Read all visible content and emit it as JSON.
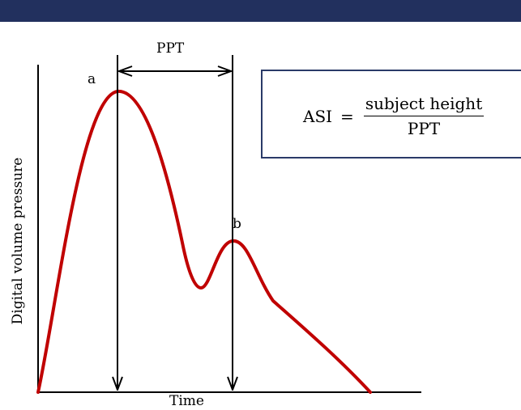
{
  "colors": {
    "top_bar": "#22305e",
    "curve": "#c00000",
    "box_border": "#2a3a68",
    "lines": "#000000"
  },
  "labels": {
    "ppt_interval": "PPT",
    "peak_a": "a",
    "peak_b": "b",
    "x_axis": "Time",
    "y_axis": "Digital volume pressure"
  },
  "formula": {
    "lhs": "ASI",
    "equals": "=",
    "numerator": "subject height",
    "denominator": "PPT"
  }
}
